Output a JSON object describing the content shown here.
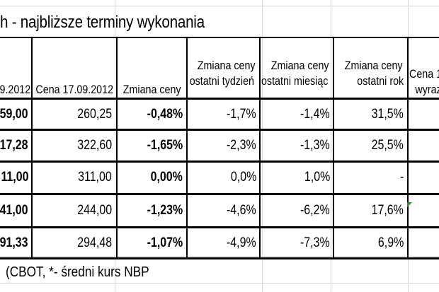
{
  "title": "h - najbliższe terminy wykonania",
  "headers": {
    "col0": ".9.2012",
    "col1": "Cena 17.09.2012",
    "col2": "Zmiana ceny",
    "col3_line1": "Zmiana ceny",
    "col3_line2": "ostatni tydzień",
    "col4_line1": "Zmiana ceny",
    "col4_line2": "ostatni miesiąc",
    "col5_line1": "Zmiana ceny",
    "col5_line2": "ostatni rok",
    "col6_line1": "Cena 1",
    "col6_line2": "wyraz"
  },
  "rows": [
    {
      "prev": "59,00",
      "price": "260,25",
      "change": "-0,48%",
      "week": "-1,7%",
      "month": "-1,4%",
      "year": "31,5%"
    },
    {
      "prev": "17,28",
      "price": "322,60",
      "change": "-1,65%",
      "week": "-2,3%",
      "month": "-1,3%",
      "year": "25,5%"
    },
    {
      "prev": "11,00",
      "price": "311,00",
      "change": "0,00%",
      "week": "0,0%",
      "month": "1,0%",
      "year": "-"
    },
    {
      "prev": "41,00",
      "price": "244,00",
      "change": "-1,23%",
      "week": "-4,6%",
      "month": "-6,2%",
      "year": "17,6%"
    },
    {
      "prev": "91,33",
      "price": "294,48",
      "change": "-1,07%",
      "week": "-4,9%",
      "month": "-7,3%",
      "year": "6,9%"
    }
  ],
  "footer": "(CBOT, *- średni kurs NBP",
  "colors": {
    "grid": "#d9d9d9",
    "border": "#000000",
    "indicator": "#2e8b2e"
  }
}
